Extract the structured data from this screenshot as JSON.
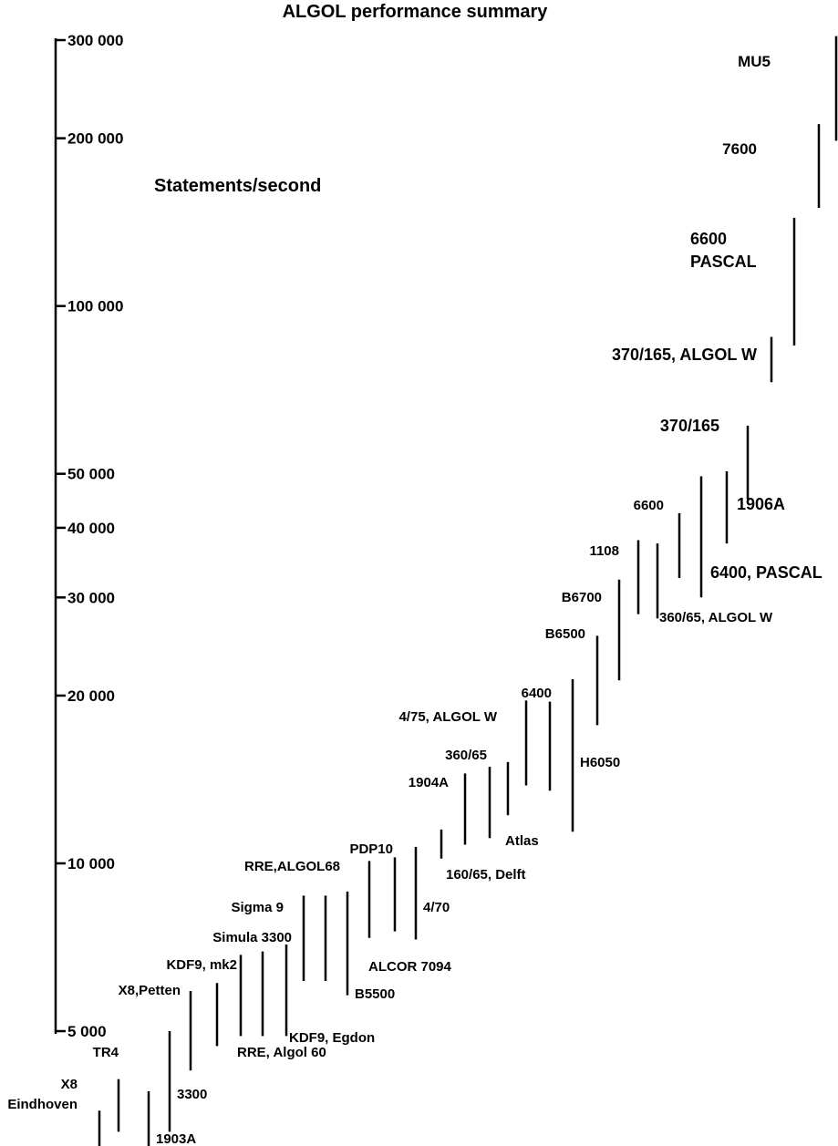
{
  "chart_data": {
    "type": "range",
    "title": "ALGOL performance summary",
    "ylabel": "Statements/second",
    "yscale": "log",
    "ylim": [
      5000,
      300000
    ],
    "y_ticks": [
      {
        "value": 300000,
        "label": "300 000"
      },
      {
        "value": 200000,
        "label": "200 000"
      },
      {
        "value": 100000,
        "label": "100 000"
      },
      {
        "value": 50000,
        "label": "50 000"
      },
      {
        "value": 40000,
        "label": "40 000"
      },
      {
        "value": 30000,
        "label": "30 000"
      },
      {
        "value": 20000,
        "label": "20 000"
      },
      {
        "value": 10000,
        "label": "10 000"
      },
      {
        "value": 5000,
        "label": "5 000"
      }
    ],
    "series": [
      {
        "label": "X8\nEindhoven",
        "low": 2700,
        "high": 3600
      },
      {
        "label": "TR4",
        "low": 3300,
        "high": 4100
      },
      {
        "label": "1903A",
        "low": 2600,
        "high": 3900
      },
      {
        "label": "3300",
        "low": 3300,
        "high": 5000
      },
      {
        "label": "X8,Petten",
        "low": 4250,
        "high": 5900
      },
      {
        "label": "KDF9, mk2",
        "low": 4700,
        "high": 6100
      },
      {
        "label": "RRE, Algol 60",
        "low": 4900,
        "high": 6850
      },
      {
        "label": "KDF9, Egdon",
        "low": 4900,
        "high": 6950
      },
      {
        "label": "Simula 3300",
        "low": 4900,
        "high": 7150
      },
      {
        "label": "Sigma 9",
        "low": 6150,
        "high": 8750
      },
      {
        "label": "RRE,ALGOL68",
        "low": 6150,
        "high": 8750
      },
      {
        "label": "B5500",
        "low": 5800,
        "high": 8900
      },
      {
        "label": "ALCOR 7094",
        "low": 7350,
        "high": 10100
      },
      {
        "label": "PDP10",
        "low": 7550,
        "high": 10250
      },
      {
        "label": "4/70",
        "low": 7300,
        "high": 10700
      },
      {
        "label": "4/75, ALGOL W",
        "low": 10200,
        "high": 11500
      },
      {
        "label": "160/65, Delft",
        "low": 10800,
        "high": 14500
      },
      {
        "label": "360/65",
        "low": 11100,
        "high": 14900
      },
      {
        "label": "Atlas",
        "low": 12200,
        "high": 15200
      },
      {
        "label": "1904A",
        "low": 13800,
        "high": 19600
      },
      {
        "label": "6400",
        "low": 13500,
        "high": 19500
      },
      {
        "label": "H6050",
        "low": 11400,
        "high": 21400
      },
      {
        "label": "B6500",
        "low": 17700,
        "high": 25600
      },
      {
        "label": "B6700",
        "low": 21300,
        "high": 32300
      },
      {
        "label": "1108",
        "low": 28000,
        "high": 38000
      },
      {
        "label": "360/65, ALGOL W",
        "low": 27500,
        "high": 37500
      },
      {
        "label": "6600",
        "low": 32500,
        "high": 42500
      },
      {
        "label": "6400, PASCAL",
        "low": 30000,
        "high": 49500
      },
      {
        "label": "1906A",
        "low": 37500,
        "high": 50500
      },
      {
        "label": "370/165",
        "low": 45000,
        "high": 61000
      },
      {
        "label": "370/165, ALGOL W",
        "low": 73000,
        "high": 88000
      },
      {
        "label": "6600\nPASCAL",
        "low": 85000,
        "high": 144000
      },
      {
        "label": "7600",
        "low": 150000,
        "high": 212000
      },
      {
        "label": "MU5",
        "low": 198000,
        "high": 305000
      }
    ]
  },
  "colors": {
    "ink": "#000000",
    "background": "#ffffff"
  }
}
